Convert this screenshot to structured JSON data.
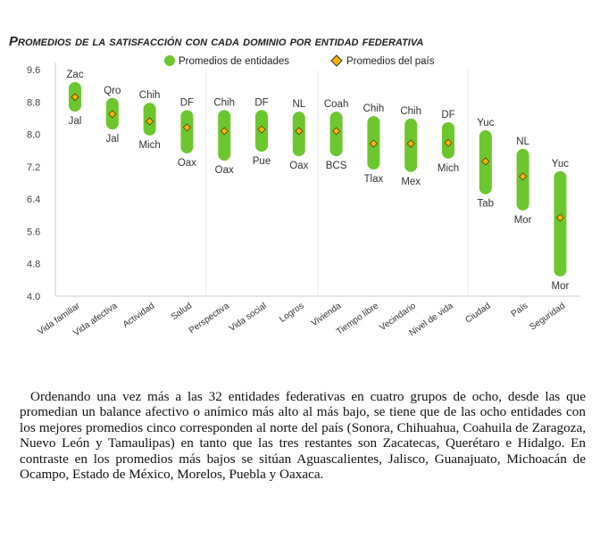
{
  "title": "Promedios de la satisfacción con cada dominio por entidad federativa",
  "paragraph": "Ordenando una vez más a las 32 entidades federativas en cuatro grupos de ocho, desde las que promedian un balance afectivo o anímico más alto al más bajo, se tiene que de las ocho entidades con los mejores promedios cinco corresponden al norte del país (Sonora, Chihuahua, Coahuila de Zaragoza, Nuevo León y Tamaulipas) en tanto que las tres restantes son Zacatecas, Querétaro e Hidalgo. En contraste en los promedios más bajos se sitúan Aguascalientes, Jalisco, Guanajuato, Michoacán de Ocampo, Estado de México, Morelos, Puebla y Oaxaca.",
  "chart_data": {
    "type": "range-dot",
    "title": "",
    "ylim": [
      4.0,
      9.6
    ],
    "yticks": [
      "9.6",
      "8.8",
      "8.0",
      "7.2",
      "6.4",
      "5.6",
      "4.8",
      "4.0"
    ],
    "legend": {
      "placement": "top",
      "items": [
        {
          "name": "Promedios de entidades",
          "color": "#6cc72e",
          "marker": "bar"
        },
        {
          "name": "Promedios del país",
          "color": "#f2b705",
          "marker": "diamond"
        }
      ]
    },
    "categories": [
      "Vida familiar",
      "Vida afectiva",
      "Actividad",
      "Salud",
      "Perspectiva",
      "Vida social",
      "Logros",
      "Vivienda",
      "Tiempo libre",
      "Vecindario",
      "Nivel de vida",
      "Ciudad",
      "País",
      "Seguridad"
    ],
    "max_entity": [
      "Zac",
      "Qro",
      "Chih",
      "DF",
      "Chih",
      "DF",
      "NL",
      "Coah",
      "Chih",
      "Chih",
      "DF",
      "Yuc",
      "NL",
      "Yuc"
    ],
    "min_entity": [
      "Jal",
      "Jal",
      "Mich",
      "Oax",
      "Oax",
      "Pue",
      "Oax",
      "BCS",
      "Tlax",
      "Mex",
      "Mich",
      "Tab",
      "Mor",
      "Mor"
    ],
    "max": [
      9.29,
      8.9,
      8.78,
      8.6,
      8.6,
      8.6,
      8.56,
      8.56,
      8.45,
      8.39,
      8.3,
      8.1,
      7.64,
      7.09
    ],
    "min": [
      8.56,
      8.12,
      7.97,
      7.53,
      7.35,
      7.57,
      7.46,
      7.46,
      7.13,
      7.07,
      7.4,
      6.52,
      6.12,
      4.49
    ],
    "national": [
      8.92,
      8.5,
      8.32,
      8.17,
      8.08,
      8.12,
      8.08,
      8.08,
      7.77,
      7.77,
      7.79,
      7.33,
      6.96,
      5.94
    ]
  }
}
